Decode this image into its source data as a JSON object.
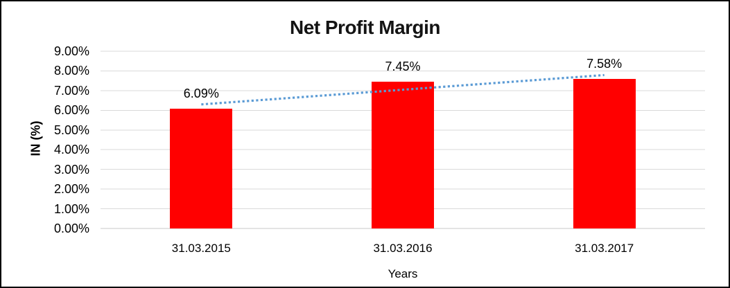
{
  "chart_data": {
    "type": "bar",
    "title": "Net Profit Margin",
    "categories": [
      "31.03.2015",
      "31.03.2016",
      "31.03.2017"
    ],
    "values": [
      6.09,
      7.45,
      7.58
    ],
    "data_labels": [
      "6.09%",
      "7.45%",
      "7.58%"
    ],
    "xlabel": "Years",
    "ylabel": "IN (%)",
    "ylim": [
      0,
      9
    ],
    "y_tick_step": 1,
    "y_ticks": [
      "0.00%",
      "1.00%",
      "2.00%",
      "3.00%",
      "4.00%",
      "5.00%",
      "6.00%",
      "7.00%",
      "8.00%",
      "9.00%"
    ],
    "grid": true,
    "legend": "none",
    "bar_color": "#FF0000",
    "gridline_color": "#D9D9D9",
    "axis_line_color": "#C9C9C9",
    "text_color": "#000000",
    "trendline": {
      "type": "linear",
      "style": "dotted",
      "color": "#5B9BD5",
      "start_value": 6.3,
      "end_value": 7.79
    }
  }
}
